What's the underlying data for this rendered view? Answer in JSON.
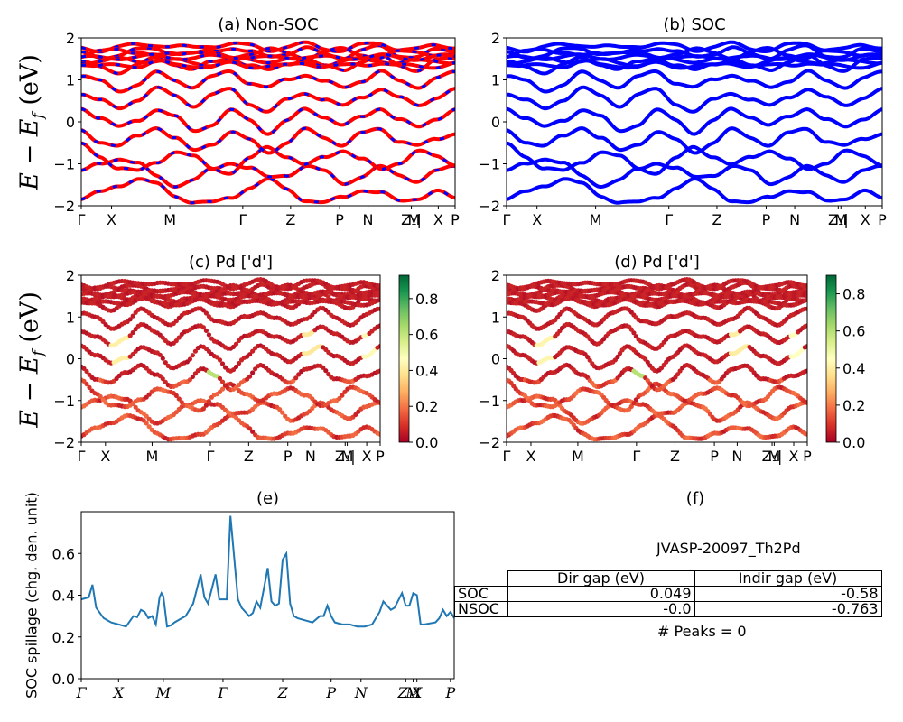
{
  "figure_id": "JVASP-20097_Th2Pd",
  "ylabel_energy": "E − E",
  "ylabel_energy_sub": "f",
  "ylabel_energy_unit": " (eV)",
  "ylabel_spillage": "SOC spillage (chg. den. unit)",
  "peaks_text": "# Peaks = 0",
  "colors": {
    "nonsoc_line": "#ff0000",
    "nonsoc_dash": "#0000ff",
    "soc_line": "#0000ff",
    "spillage_line": "#1f77b4"
  },
  "colormap": [
    "#a50026",
    "#d73027",
    "#f46d43",
    "#fdae61",
    "#fee08b",
    "#ffffbf",
    "#d9ef8b",
    "#a6d96a",
    "#66bd63",
    "#1a9850",
    "#006837"
  ],
  "gap_table": {
    "headers": [
      "Dir gap (eV)",
      "Indir gap (eV)"
    ],
    "rows": [
      {
        "label": "SOC",
        "dir": "0.049",
        "indir": "-0.58"
      },
      {
        "label": "NSOC",
        "dir": "-0.0",
        "indir": "-0.763"
      }
    ]
  },
  "chart_data": [
    {
      "panel": "a",
      "type": "line",
      "title": "(a) Non-SOC",
      "ylim": [
        -2,
        2
      ],
      "yticks": [
        "−2",
        "−1",
        "0",
        "1",
        "2"
      ],
      "kpath_labels": [
        "Γ",
        "X",
        "M",
        "Γ",
        "Z",
        "P",
        "N",
        "Z₁|",
        "M",
        "X",
        "P"
      ],
      "kpath_positions": [
        0,
        0.081,
        0.237,
        0.432,
        0.56,
        0.691,
        0.767,
        0.883,
        0.89,
        0.955,
        1.0
      ],
      "bands": [
        [
          -1.85,
          -1.7,
          -1.5,
          -1.35,
          -1.5,
          -1.75,
          -1.9,
          -1.95,
          -1.8,
          -1.55,
          -1.4,
          -1.6,
          -1.85,
          -1.95,
          -1.8,
          -1.6,
          -1.7,
          -1.9,
          -1.8,
          -1.65,
          -1.85
        ],
        [
          -1.2,
          -1.0,
          -0.85,
          -1.0,
          -1.3,
          -1.5,
          -1.4,
          -1.15,
          -0.95,
          -1.1,
          -1.35,
          -1.25,
          -1.05,
          -1.2,
          -1.45,
          -1.3,
          -1.1,
          -1.25,
          -1.4,
          -1.2,
          -1.05
        ],
        [
          -0.55,
          -0.8,
          -1.1,
          -1.2,
          -0.95,
          -0.7,
          -0.85,
          -1.1,
          -1.2,
          -0.9,
          -0.6,
          -0.8,
          -1.05,
          -0.85,
          -0.65,
          -0.9,
          -1.15,
          -0.95,
          -0.7,
          -0.85,
          -1.0
        ],
        [
          -0.2,
          -0.45,
          -0.6,
          -0.35,
          -0.1,
          -0.4,
          -0.7,
          -0.5,
          -0.25,
          -0.45,
          -0.7,
          -0.5,
          -0.2,
          -0.35,
          -0.55,
          -0.3,
          -0.15,
          -0.45,
          -0.6,
          -0.4,
          -0.25
        ],
        [
          0.35,
          0.1,
          -0.15,
          0.05,
          0.3,
          0.1,
          -0.2,
          -0.05,
          0.25,
          0.05,
          -0.25,
          0.0,
          0.3,
          0.15,
          -0.1,
          0.1,
          0.35,
          0.05,
          -0.15,
          0.1,
          0.3
        ],
        [
          0.7,
          0.5,
          0.3,
          0.55,
          0.8,
          0.6,
          0.4,
          0.65,
          0.75,
          0.45,
          0.25,
          0.5,
          0.7,
          0.55,
          0.35,
          0.6,
          0.8,
          0.55,
          0.4,
          0.6,
          0.75
        ],
        [
          1.1,
          0.95,
          0.75,
          0.9,
          1.15,
          1.0,
          0.85,
          1.05,
          1.2,
          0.95,
          0.8,
          1.0,
          1.15,
          0.95,
          0.8,
          1.0,
          1.2,
          0.95,
          0.85,
          1.05,
          1.15
        ],
        [
          1.4,
          1.3,
          1.2,
          1.35,
          1.5,
          1.4,
          1.25,
          1.4,
          1.55,
          1.35,
          1.2,
          1.4,
          1.5,
          1.3,
          1.25,
          1.45,
          1.55,
          1.35,
          1.25,
          1.45,
          1.5
        ],
        [
          1.62,
          1.55,
          1.6,
          1.7,
          1.75,
          1.65,
          1.6,
          1.7,
          1.78,
          1.65,
          1.55,
          1.65,
          1.75,
          1.6,
          1.55,
          1.7,
          1.78,
          1.6,
          1.55,
          1.7,
          1.7
        ],
        [
          1.75,
          1.72,
          1.78,
          1.82,
          1.85,
          1.8,
          1.75,
          1.82,
          1.87,
          1.8,
          1.72,
          1.8,
          1.85,
          1.75,
          1.72,
          1.82,
          1.86,
          1.75,
          1.72,
          1.82,
          1.8
        ]
      ]
    },
    {
      "panel": "b",
      "type": "line",
      "title": "(b) SOC",
      "ylim": [
        -2,
        2
      ],
      "yticks": [
        "−2",
        "−1",
        "0",
        "1",
        "2"
      ],
      "kpath_labels": [
        "Γ",
        "X",
        "M",
        "Γ",
        "Z",
        "P",
        "N",
        "Z₁|",
        "M",
        "X",
        "P"
      ],
      "kpath_positions": [
        0,
        0.081,
        0.237,
        0.432,
        0.56,
        0.691,
        0.767,
        0.883,
        0.89,
        0.955,
        1.0
      ],
      "bands": [
        [
          -1.85,
          -1.7,
          -1.5,
          -1.35,
          -1.5,
          -1.75,
          -1.9,
          -1.95,
          -1.8,
          -1.55,
          -1.4,
          -1.6,
          -1.85,
          -1.95,
          -1.8,
          -1.6,
          -1.7,
          -1.9,
          -1.8,
          -1.65,
          -1.85
        ],
        [
          -1.2,
          -1.0,
          -0.85,
          -1.0,
          -1.3,
          -1.5,
          -1.4,
          -1.15,
          -0.95,
          -1.1,
          -1.35,
          -1.25,
          -1.05,
          -1.2,
          -1.45,
          -1.3,
          -1.1,
          -1.25,
          -1.4,
          -1.2,
          -1.05
        ],
        [
          -0.55,
          -0.8,
          -1.1,
          -1.2,
          -0.95,
          -0.7,
          -0.85,
          -1.1,
          -1.2,
          -0.9,
          -0.6,
          -0.8,
          -1.05,
          -0.85,
          -0.65,
          -0.9,
          -1.15,
          -0.95,
          -0.7,
          -0.85,
          -1.0
        ],
        [
          -0.2,
          -0.45,
          -0.6,
          -0.35,
          -0.1,
          -0.4,
          -0.7,
          -0.5,
          -0.25,
          -0.45,
          -0.7,
          -0.5,
          -0.2,
          -0.35,
          -0.55,
          -0.3,
          -0.15,
          -0.45,
          -0.6,
          -0.4,
          -0.25
        ],
        [
          0.35,
          0.1,
          -0.15,
          0.05,
          0.3,
          0.1,
          -0.2,
          -0.05,
          0.25,
          0.05,
          -0.25,
          0.0,
          0.3,
          0.15,
          -0.1,
          0.1,
          0.35,
          0.05,
          -0.15,
          0.1,
          0.3
        ],
        [
          0.7,
          0.5,
          0.3,
          0.55,
          0.8,
          0.6,
          0.4,
          0.65,
          0.75,
          0.45,
          0.25,
          0.5,
          0.7,
          0.55,
          0.35,
          0.6,
          0.8,
          0.55,
          0.4,
          0.6,
          0.75
        ],
        [
          1.1,
          0.95,
          0.75,
          0.9,
          1.15,
          1.0,
          0.85,
          1.05,
          1.2,
          0.95,
          0.8,
          1.0,
          1.15,
          0.95,
          0.8,
          1.0,
          1.2,
          0.95,
          0.85,
          1.05,
          1.15
        ],
        [
          1.4,
          1.3,
          1.2,
          1.35,
          1.5,
          1.4,
          1.25,
          1.4,
          1.55,
          1.35,
          1.2,
          1.4,
          1.5,
          1.3,
          1.25,
          1.45,
          1.55,
          1.35,
          1.25,
          1.45,
          1.5
        ],
        [
          1.62,
          1.55,
          1.6,
          1.7,
          1.75,
          1.65,
          1.6,
          1.7,
          1.78,
          1.65,
          1.55,
          1.65,
          1.75,
          1.6,
          1.55,
          1.7,
          1.78,
          1.6,
          1.55,
          1.7,
          1.7
        ],
        [
          1.75,
          1.72,
          1.78,
          1.82,
          1.85,
          1.8,
          1.75,
          1.82,
          1.87,
          1.8,
          1.72,
          1.8,
          1.85,
          1.75,
          1.72,
          1.82,
          1.86,
          1.75,
          1.72,
          1.82,
          1.8
        ]
      ]
    },
    {
      "panel": "c",
      "type": "scatter",
      "title": "(c)  Pd ['d']",
      "ylim": [
        -2,
        2
      ],
      "yticks": [
        "−2",
        "−1",
        "0",
        "1",
        "2"
      ],
      "colorbar": {
        "range": [
          0,
          0.93
        ],
        "ticks": [
          "0.0",
          "0.2",
          "0.4",
          "0.6",
          "0.8"
        ],
        "tick_values": [
          0,
          0.2,
          0.4,
          0.6,
          0.8
        ]
      },
      "kpath_labels": [
        "Γ",
        "X",
        "M",
        "Γ",
        "Z",
        "P",
        "N",
        "Z₁|",
        "M",
        "X",
        "P"
      ],
      "kpath_positions": [
        0,
        0.081,
        0.237,
        0.432,
        0.56,
        0.691,
        0.767,
        0.883,
        0.89,
        0.955,
        1.0
      ],
      "green_highlight": {
        "x": [
          0.42,
          0.46
        ],
        "y": -0.45,
        "value": 0.62
      },
      "light_highlight": [
        {
          "x": [
            0.1,
            0.16
          ],
          "y": 0.25,
          "value": 0.42
        },
        {
          "x": [
            0.74,
            0.8
          ],
          "y": 0.3,
          "value": 0.4
        },
        {
          "x": [
            0.94,
            0.99
          ],
          "y": 0.25,
          "value": 0.45
        }
      ]
    },
    {
      "panel": "d",
      "type": "scatter",
      "title": "(d) Pd ['d']",
      "ylim": [
        -2,
        2
      ],
      "yticks": [
        "−2",
        "−1",
        "0",
        "1",
        "2"
      ],
      "colorbar": {
        "range": [
          0,
          0.9
        ],
        "ticks": [
          "0.0",
          "0.2",
          "0.4",
          "0.6",
          "0.8"
        ],
        "tick_values": [
          0,
          0.2,
          0.4,
          0.6,
          0.8
        ]
      },
      "kpath_labels": [
        "Γ",
        "X",
        "M",
        "Γ",
        "Z",
        "P",
        "N",
        "Z₁|",
        "M",
        "X",
        "P"
      ],
      "kpath_positions": [
        0,
        0.081,
        0.237,
        0.432,
        0.56,
        0.691,
        0.767,
        0.883,
        0.89,
        0.955,
        1.0
      ],
      "green_highlight": {
        "x": [
          0.42,
          0.46
        ],
        "y": -0.45,
        "value": 0.6
      },
      "light_highlight": [
        {
          "x": [
            0.1,
            0.16
          ],
          "y": 0.25,
          "value": 0.42
        },
        {
          "x": [
            0.74,
            0.8
          ],
          "y": 0.3,
          "value": 0.4
        },
        {
          "x": [
            0.94,
            0.99
          ],
          "y": 0.25,
          "value": 0.45
        }
      ]
    },
    {
      "panel": "e",
      "type": "line",
      "title": "(e)",
      "xlabel": "",
      "ylabel": "SOC spillage (chg. den. unit)",
      "ylim": [
        0,
        0.8
      ],
      "yticks": [
        "0.0",
        "0.2",
        "0.4",
        "0.6"
      ],
      "ytick_values": [
        0,
        0.2,
        0.4,
        0.6
      ],
      "kpath_labels": [
        "Γ",
        "X",
        "M",
        "Γ",
        "Z",
        "P",
        "N",
        "Z₁",
        "M",
        "X",
        "P"
      ],
      "kpath_positions": [
        0,
        0.1,
        0.22,
        0.38,
        0.54,
        0.67,
        0.75,
        0.87,
        0.89,
        0.9,
        0.99
      ],
      "x": [
        0,
        0.01,
        0.02,
        0.03,
        0.04,
        0.06,
        0.08,
        0.1,
        0.12,
        0.14,
        0.15,
        0.16,
        0.17,
        0.18,
        0.19,
        0.2,
        0.21,
        0.215,
        0.22,
        0.23,
        0.24,
        0.25,
        0.27,
        0.28,
        0.3,
        0.32,
        0.33,
        0.34,
        0.36,
        0.37,
        0.38,
        0.39,
        0.4,
        0.42,
        0.43,
        0.44,
        0.45,
        0.46,
        0.47,
        0.48,
        0.5,
        0.51,
        0.52,
        0.53,
        0.54,
        0.55,
        0.56,
        0.57,
        0.58,
        0.6,
        0.62,
        0.64,
        0.65,
        0.66,
        0.67,
        0.68,
        0.7,
        0.71,
        0.72,
        0.74,
        0.76,
        0.78,
        0.8,
        0.81,
        0.82,
        0.83,
        0.84,
        0.86,
        0.87,
        0.88,
        0.89,
        0.9,
        0.91,
        0.92,
        0.95,
        0.96,
        0.97,
        0.98,
        0.99,
        1.0
      ],
      "values": [
        0.38,
        0.385,
        0.39,
        0.45,
        0.34,
        0.29,
        0.27,
        0.26,
        0.25,
        0.3,
        0.295,
        0.33,
        0.32,
        0.29,
        0.3,
        0.26,
        0.39,
        0.41,
        0.395,
        0.25,
        0.255,
        0.27,
        0.29,
        0.3,
        0.36,
        0.5,
        0.39,
        0.36,
        0.5,
        0.38,
        0.38,
        0.38,
        0.78,
        0.38,
        0.34,
        0.32,
        0.3,
        0.315,
        0.37,
        0.34,
        0.53,
        0.37,
        0.35,
        0.36,
        0.57,
        0.6,
        0.36,
        0.3,
        0.29,
        0.28,
        0.27,
        0.3,
        0.3,
        0.35,
        0.3,
        0.27,
        0.26,
        0.26,
        0.26,
        0.25,
        0.25,
        0.26,
        0.32,
        0.37,
        0.35,
        0.33,
        0.34,
        0.41,
        0.35,
        0.35,
        0.41,
        0.4,
        0.26,
        0.26,
        0.27,
        0.29,
        0.33,
        0.3,
        0.32,
        0.29
      ]
    }
  ]
}
